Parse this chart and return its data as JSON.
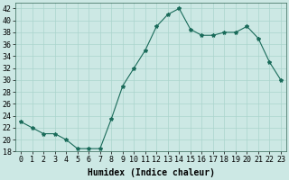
{
  "x": [
    0,
    1,
    2,
    3,
    4,
    5,
    6,
    7,
    8,
    9,
    10,
    11,
    12,
    13,
    14,
    15,
    16,
    17,
    18,
    19,
    20,
    21,
    22,
    23
  ],
  "y": [
    23,
    22,
    21,
    21,
    20,
    18.5,
    18.5,
    18.5,
    23.5,
    29,
    32,
    35,
    39,
    41,
    42,
    38.5,
    37.5,
    37.5,
    38,
    38,
    39,
    37,
    33,
    30
  ],
  "line_color": "#1a6b5a",
  "marker": "*",
  "marker_size": 3,
  "bg_color": "#cce8e4",
  "grid_color": "#aad4cc",
  "xlabel": "Humidex (Indice chaleur)",
  "xlabel_fontsize": 7,
  "tick_fontsize": 6,
  "ylim": [
    18,
    43
  ],
  "yticks": [
    18,
    20,
    22,
    24,
    26,
    28,
    30,
    32,
    34,
    36,
    38,
    40,
    42
  ],
  "xticks": [
    0,
    1,
    2,
    3,
    4,
    5,
    6,
    7,
    8,
    9,
    10,
    11,
    12,
    13,
    14,
    15,
    16,
    17,
    18,
    19,
    20,
    21,
    22,
    23
  ],
  "xlim": [
    -0.5,
    23.5
  ]
}
